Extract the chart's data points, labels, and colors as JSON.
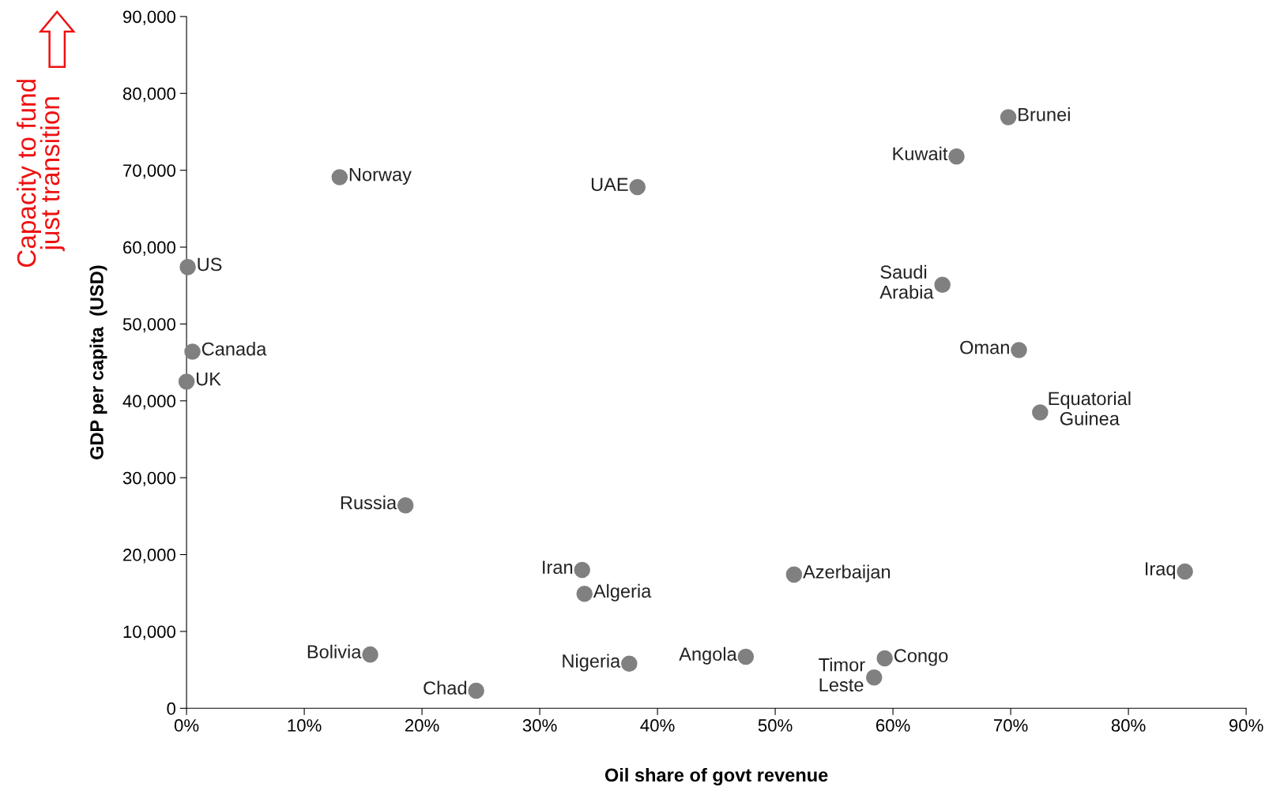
{
  "chart_data": {
    "type": "scatter",
    "xlabel": "Oil share of govt revenue",
    "ylabel": "GDP per capita  (USD)",
    "annotations": [
      "Capacity to fund\njust transition",
      {
        "text": "Norway",
        "x": 13.0,
        "y": 69100
      },
      {
        "text": "UAE",
        "x": 38.3,
        "y": 67800
      },
      {
        "text": "Brunei",
        "x": 69.8,
        "y": 76900
      },
      {
        "text": "Kuwait",
        "x": 65.4,
        "y": 71800
      },
      {
        "text": "US",
        "x": 0.1,
        "y": 57400
      },
      {
        "text": "Saudi\nArabia",
        "x": 64.2,
        "y": 55100
      },
      {
        "text": "Canada",
        "x": 0.5,
        "y": 46400
      },
      {
        "text": "Oman",
        "x": 70.7,
        "y": 46600
      },
      {
        "text": "UK",
        "x": 0.0,
        "y": 42500
      },
      {
        "text": "Equatorial\nGuinea",
        "x": 72.5,
        "y": 38500
      },
      {
        "text": "Russia",
        "x": 18.6,
        "y": 26400
      },
      {
        "text": "Iran",
        "x": 33.6,
        "y": 18000
      },
      {
        "text": "Algeria",
        "x": 33.8,
        "y": 14900
      },
      {
        "text": "Azerbaijan",
        "x": 51.6,
        "y": 17400
      },
      {
        "text": "Iraq",
        "x": 84.8,
        "y": 17800
      },
      {
        "text": "Bolivia",
        "x": 15.6,
        "y": 7000
      },
      {
        "text": "Chad",
        "x": 24.6,
        "y": 2300
      },
      {
        "text": "Nigeria",
        "x": 37.6,
        "y": 5800
      },
      {
        "text": "Angola",
        "x": 47.5,
        "y": 6700
      },
      {
        "text": "Congo",
        "x": 59.3,
        "y": 6500
      },
      {
        "text": "Timor\nLeste",
        "x": 58.4,
        "y": 4000
      }
    ],
    "x": [
      13.0,
      38.3,
      69.8,
      65.4,
      0.1,
      64.2,
      0.5,
      70.7,
      0.0,
      72.5,
      18.6,
      33.6,
      33.8,
      51.6,
      84.8,
      15.6,
      24.6,
      37.6,
      47.5,
      59.3,
      58.4
    ],
    "values": [
      69100,
      67800,
      76900,
      71800,
      57400,
      55100,
      46400,
      46600,
      42500,
      38500,
      26400,
      18000,
      14900,
      17400,
      17800,
      7000,
      2300,
      5800,
      6700,
      6500,
      4000
    ],
    "color": "#808080",
    "marker": "circle",
    "grid": false,
    "legend": false,
    "xlim": [
      0,
      90
    ],
    "xticks": [
      {
        "value": 0,
        "label": "0%"
      },
      {
        "value": 10,
        "label": "10%"
      },
      {
        "value": 20,
        "label": "20%"
      },
      {
        "value": 30,
        "label": "30%"
      },
      {
        "value": 40,
        "label": "40%"
      },
      {
        "value": 50,
        "label": "50%"
      },
      {
        "value": 60,
        "label": "60%"
      },
      {
        "value": 70,
        "label": "70%"
      },
      {
        "value": 80,
        "label": "80%"
      },
      {
        "value": 90,
        "label": "90%"
      }
    ],
    "ylim": [
      0,
      90000
    ],
    "yticks": [
      0,
      {
        "value": 10000,
        "label": "10,000"
      },
      {
        "value": 20000,
        "label": "20,000"
      },
      {
        "value": 30000,
        "label": "30,000"
      },
      {
        "value": 40000,
        "label": "40,000"
      },
      {
        "value": 50000,
        "label": "50,000"
      },
      {
        "value": 60000,
        "label": "60,000"
      },
      {
        "value": 70000,
        "label": "70,000"
      },
      {
        "value": 80000,
        "label": "80,000"
      },
      {
        "value": 90000,
        "label": "90,000"
      }
    ]
  }
}
